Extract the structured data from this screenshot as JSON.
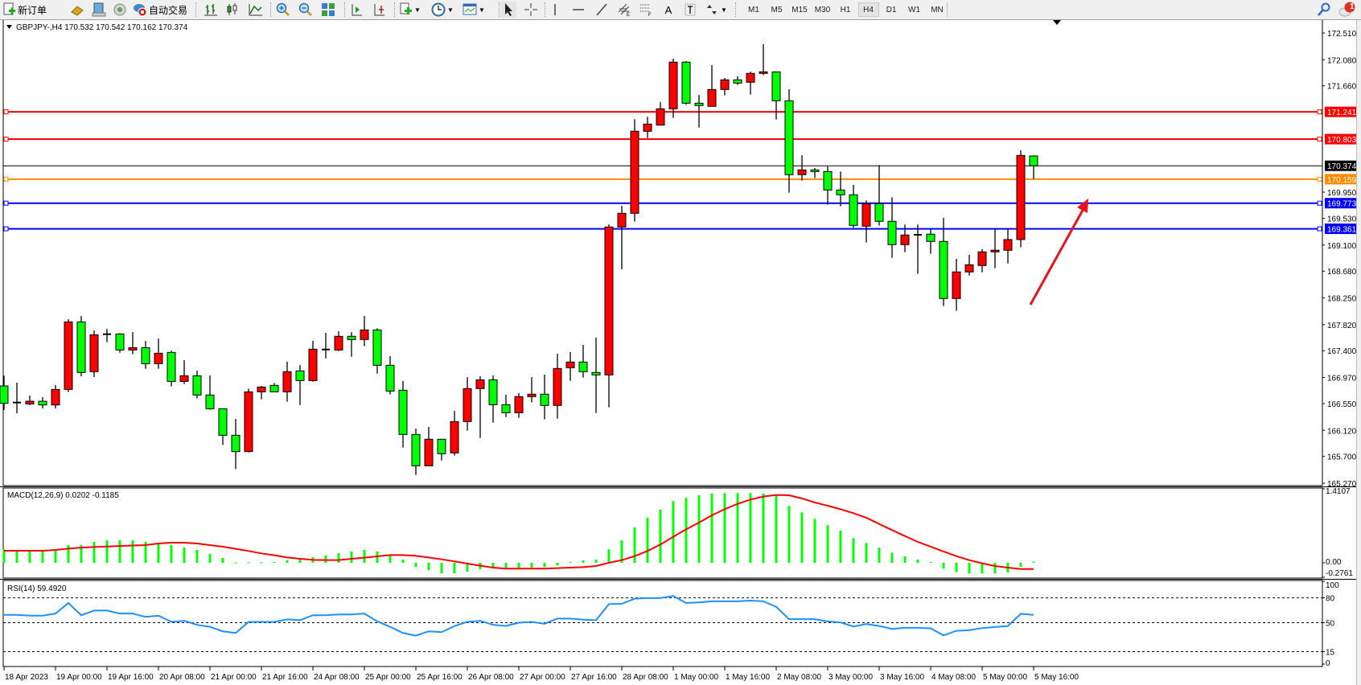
{
  "toolbar": {
    "new_order_label": "新订单",
    "autotrade_label": "自动交易",
    "timeframes": [
      "M1",
      "M5",
      "M15",
      "M30",
      "H1",
      "H4",
      "D1",
      "W1",
      "MN"
    ],
    "selected_timeframe": "H4",
    "notification_count": "1"
  },
  "chart_data": {
    "type": "candlestick",
    "header": "GBPJPY-,H4  170.532 170.542 170.162 170.374",
    "bull_color": "#ff0000",
    "bear_color": "#00ff00",
    "ylim": [
      165.27,
      172.51
    ],
    "price_ticks": [
      "172.510",
      "172.080",
      "171.660",
      "169.950",
      "169.530",
      "169.100",
      "168.680",
      "168.250",
      "167.820",
      "167.400",
      "166.970",
      "166.550",
      "166.120",
      "165.700",
      "165.270"
    ],
    "levels": [
      {
        "price": 171.241,
        "label": "171.241",
        "color": "#ff0000"
      },
      {
        "price": 170.803,
        "label": "170.803",
        "color": "#ff0000"
      },
      {
        "price": 170.159,
        "label": "170.159",
        "color": "#ff8c00"
      },
      {
        "price": 169.773,
        "label": "169.773",
        "color": "#0000ff"
      },
      {
        "price": 169.361,
        "label": "169.361",
        "color": "#0000ff"
      }
    ],
    "current_price": {
      "price": 170.374,
      "label": "170.374",
      "color": "#000000"
    },
    "arrow_color": "#e8141c",
    "time_labels": [
      "18 Apr 2023",
      "19 Apr 00:00",
      "19 Apr 16:00",
      "20 Apr 08:00",
      "21 Apr 00:00",
      "21 Apr 16:00",
      "24 Apr 08:00",
      "25 Apr 00:00",
      "25 Apr 16:00",
      "26 Apr 08:00",
      "27 Apr 00:00",
      "27 Apr 16:00",
      "28 Apr 08:00",
      "1 May 00:00",
      "1 May 16:00",
      "2 May 08:00",
      "3 May 00:00",
      "3 May 16:00",
      "4 May 08:00",
      "5 May 00:00",
      "5 May 16:00"
    ],
    "candles_ohlc": [
      [
        166.834,
        166.998,
        166.446,
        166.554
      ],
      [
        166.567,
        166.886,
        166.395,
        166.567
      ],
      [
        166.545,
        166.679,
        166.524,
        166.588
      ],
      [
        166.588,
        166.653,
        166.472,
        166.528
      ],
      [
        166.528,
        166.847,
        166.472,
        166.778
      ],
      [
        166.778,
        167.907,
        166.735,
        167.864
      ],
      [
        167.864,
        167.959,
        166.989,
        167.05
      ],
      [
        167.063,
        167.726,
        166.976,
        167.657
      ],
      [
        167.666,
        167.752,
        167.537,
        167.666
      ],
      [
        167.67,
        167.683,
        167.369,
        167.412
      ],
      [
        167.412,
        167.7,
        167.343,
        167.45
      ],
      [
        167.45,
        167.558,
        167.11,
        167.192
      ],
      [
        167.192,
        167.597,
        167.11,
        167.36
      ],
      [
        167.373,
        167.403,
        166.826,
        166.907
      ],
      [
        166.907,
        167.248,
        166.864,
        166.998
      ],
      [
        166.998,
        167.08,
        166.632,
        166.688
      ],
      [
        166.688,
        167.002,
        166.451,
        166.468
      ],
      [
        166.468,
        166.468,
        165.886,
        166.041
      ],
      [
        166.041,
        166.304,
        165.498,
        165.778
      ],
      [
        165.778,
        166.791,
        165.765,
        166.739
      ],
      [
        166.739,
        166.834,
        166.619,
        166.817
      ],
      [
        166.843,
        166.882,
        166.739,
        166.739
      ],
      [
        166.739,
        167.222,
        166.58,
        167.063
      ],
      [
        167.076,
        167.17,
        166.528,
        166.92
      ],
      [
        166.92,
        167.558,
        166.903,
        167.425
      ],
      [
        167.42,
        167.687,
        167.278,
        167.42
      ],
      [
        167.412,
        167.713,
        167.394,
        167.632
      ],
      [
        167.632,
        167.7,
        167.304,
        167.58
      ],
      [
        167.58,
        167.959,
        167.472,
        167.735
      ],
      [
        167.735,
        167.761,
        167.032,
        167.166
      ],
      [
        167.166,
        167.313,
        166.696,
        166.752
      ],
      [
        166.765,
        166.912,
        165.843,
        166.054
      ],
      [
        166.054,
        166.149,
        165.403,
        165.55
      ],
      [
        165.55,
        166.175,
        165.55,
        165.977
      ],
      [
        165.977,
        165.977,
        165.636,
        165.744
      ],
      [
        165.757,
        166.433,
        165.714,
        166.261
      ],
      [
        166.261,
        166.976,
        166.115,
        166.791
      ],
      [
        166.791,
        166.989,
        165.998,
        166.933
      ],
      [
        166.933,
        167.002,
        166.244,
        166.532
      ],
      [
        166.532,
        166.692,
        166.334,
        166.403
      ],
      [
        166.403,
        166.718,
        166.321,
        166.662
      ],
      [
        166.662,
        166.976,
        166.571,
        166.701
      ],
      [
        166.701,
        167.015,
        166.296,
        166.52
      ],
      [
        166.52,
        167.351,
        166.308,
        167.114
      ],
      [
        167.127,
        167.377,
        166.916,
        167.218
      ],
      [
        167.218,
        167.494,
        166.968,
        167.063
      ],
      [
        167.05,
        167.61,
        166.399,
        167.011
      ],
      [
        167.011,
        169.429,
        166.49,
        169.39
      ],
      [
        169.39,
        169.731,
        168.71,
        169.61
      ],
      [
        169.61,
        171.123,
        169.477,
        170.929
      ],
      [
        170.929,
        171.162,
        170.821,
        171.045
      ],
      [
        171.028,
        171.399,
        171.028,
        171.291
      ],
      [
        171.291,
        172.097,
        171.144,
        172.041
      ],
      [
        172.041,
        172.058,
        171.356,
        171.381
      ],
      [
        171.381,
        171.515,
        170.989,
        171.343
      ],
      [
        171.33,
        171.993,
        171.33,
        171.601
      ],
      [
        171.601,
        171.786,
        171.506,
        171.756
      ],
      [
        171.756,
        171.812,
        171.674,
        171.704
      ],
      [
        171.718,
        171.89,
        171.519,
        171.86
      ],
      [
        171.86,
        172.329,
        171.834,
        171.885
      ],
      [
        171.885,
        171.885,
        171.118,
        171.42
      ],
      [
        171.42,
        171.605,
        169.942,
        170.231
      ],
      [
        170.231,
        170.545,
        170.136,
        170.308
      ],
      [
        170.308,
        170.338,
        170.179,
        170.282
      ],
      [
        170.282,
        170.364,
        169.748,
        169.985
      ],
      [
        169.985,
        170.282,
        169.722,
        169.908
      ],
      [
        169.908,
        170.067,
        169.377,
        169.416
      ],
      [
        169.403,
        169.817,
        169.141,
        169.765
      ],
      [
        169.765,
        170.386,
        169.412,
        169.481
      ],
      [
        169.481,
        169.869,
        168.895,
        169.106
      ],
      [
        169.106,
        169.429,
        168.985,
        169.261
      ],
      [
        169.265,
        169.429,
        168.636,
        169.265
      ],
      [
        169.274,
        169.352,
        168.96,
        169.158
      ],
      [
        169.158,
        169.537,
        168.119,
        168.24
      ],
      [
        168.24,
        168.877,
        168.042,
        168.667
      ],
      [
        168.667,
        168.942,
        168.61,
        168.783
      ],
      [
        168.77,
        169.033,
        168.662,
        168.99
      ],
      [
        168.99,
        169.365,
        168.727,
        169.016
      ],
      [
        169.016,
        169.365,
        168.804,
        169.188
      ],
      [
        169.188,
        170.623,
        169.063,
        170.541
      ],
      [
        170.532,
        170.542,
        170.162,
        170.374
      ]
    ],
    "macd": {
      "header": "MACD(12,26,9) 0.0202 -0.1185",
      "ticks": [
        "1.4107",
        "0.00",
        "-0.2761"
      ],
      "ylim": [
        -0.2761,
        1.4107
      ],
      "histogram_color": "#00ff00",
      "signal_color": "#ff0000",
      "histogram": [
        0.256,
        0.245,
        0.23,
        0.23,
        0.23,
        0.337,
        0.337,
        0.399,
        0.43,
        0.43,
        0.43,
        0.399,
        0.368,
        0.337,
        0.291,
        0.245,
        0.169,
        0.092,
        0.005,
        0.01,
        0.01,
        0.015,
        0.051,
        0.061,
        0.107,
        0.138,
        0.184,
        0.215,
        0.245,
        0.215,
        0.153,
        0.061,
        -0.077,
        -0.138,
        -0.199,
        -0.199,
        -0.169,
        -0.12,
        -0.11,
        -0.1,
        -0.1,
        -0.09,
        -0.08,
        -0.05,
        0.015,
        0.046,
        0.061,
        0.256,
        0.43,
        0.675,
        0.859,
        1.012,
        1.176,
        1.237,
        1.288,
        1.319,
        1.329,
        1.329,
        1.329,
        1.319,
        1.288,
        1.084,
        0.961,
        0.838,
        0.716,
        0.613,
        0.47,
        0.378,
        0.286,
        0.194,
        0.123,
        0.061,
        0.015,
        -0.112,
        -0.179,
        -0.204,
        -0.204,
        -0.204,
        -0.184,
        -0.077,
        0.0202
      ],
      "signal": [
        0.23,
        0.23,
        0.23,
        0.23,
        0.245,
        0.27,
        0.29,
        0.3,
        0.31,
        0.32,
        0.33,
        0.337,
        0.368,
        0.383,
        0.383,
        0.368,
        0.337,
        0.307,
        0.266,
        0.225,
        0.179,
        0.143,
        0.102,
        0.077,
        0.056,
        0.051,
        0.051,
        0.077,
        0.097,
        0.123,
        0.148,
        0.148,
        0.133,
        0.102,
        0.066,
        0.026,
        -0.015,
        -0.056,
        -0.092,
        -0.112,
        -0.112,
        -0.112,
        -0.112,
        -0.102,
        -0.092,
        -0.082,
        -0.061,
        0.0,
        0.051,
        0.128,
        0.225,
        0.348,
        0.496,
        0.639,
        0.767,
        0.905,
        1.022,
        1.125,
        1.207,
        1.263,
        1.293,
        1.288,
        1.227,
        1.15,
        1.089,
        1.022,
        0.946,
        0.859,
        0.741,
        0.624,
        0.511,
        0.399,
        0.307,
        0.215,
        0.128,
        0.051,
        -0.01,
        -0.061,
        -0.092,
        -0.118,
        -0.1185
      ]
    },
    "rsi": {
      "header": "RSI(14) 59.4920",
      "ticks": [
        "100",
        "80",
        "50",
        "15",
        "0"
      ],
      "levels": [
        80,
        50,
        15
      ],
      "ylim": [
        0,
        100
      ],
      "color": "#1e90ff",
      "values": [
        59.5,
        59.5,
        58.5,
        58.5,
        61,
        73.8,
        59,
        64.7,
        64.7,
        61,
        61,
        57,
        58.5,
        51,
        52.3,
        47.4,
        45,
        39.6,
        37.6,
        51,
        51,
        51,
        54,
        53,
        59,
        59,
        60,
        60,
        61,
        51.6,
        45,
        37.6,
        34.4,
        39.6,
        38.6,
        46,
        51,
        52.3,
        47.4,
        46,
        50,
        51,
        48.7,
        55,
        55,
        53.6,
        53,
        72.5,
        72.8,
        79,
        79.7,
        79.7,
        82.3,
        73.8,
        74.5,
        75.8,
        75.8,
        75.8,
        76.7,
        75.8,
        69.2,
        54.2,
        54.2,
        54.2,
        51.6,
        50.3,
        45.4,
        48.4,
        46,
        42.5,
        43.8,
        43.8,
        43.2,
        34.7,
        40.2,
        40.9,
        43.5,
        44.8,
        46,
        60.8,
        59.492
      ]
    }
  }
}
